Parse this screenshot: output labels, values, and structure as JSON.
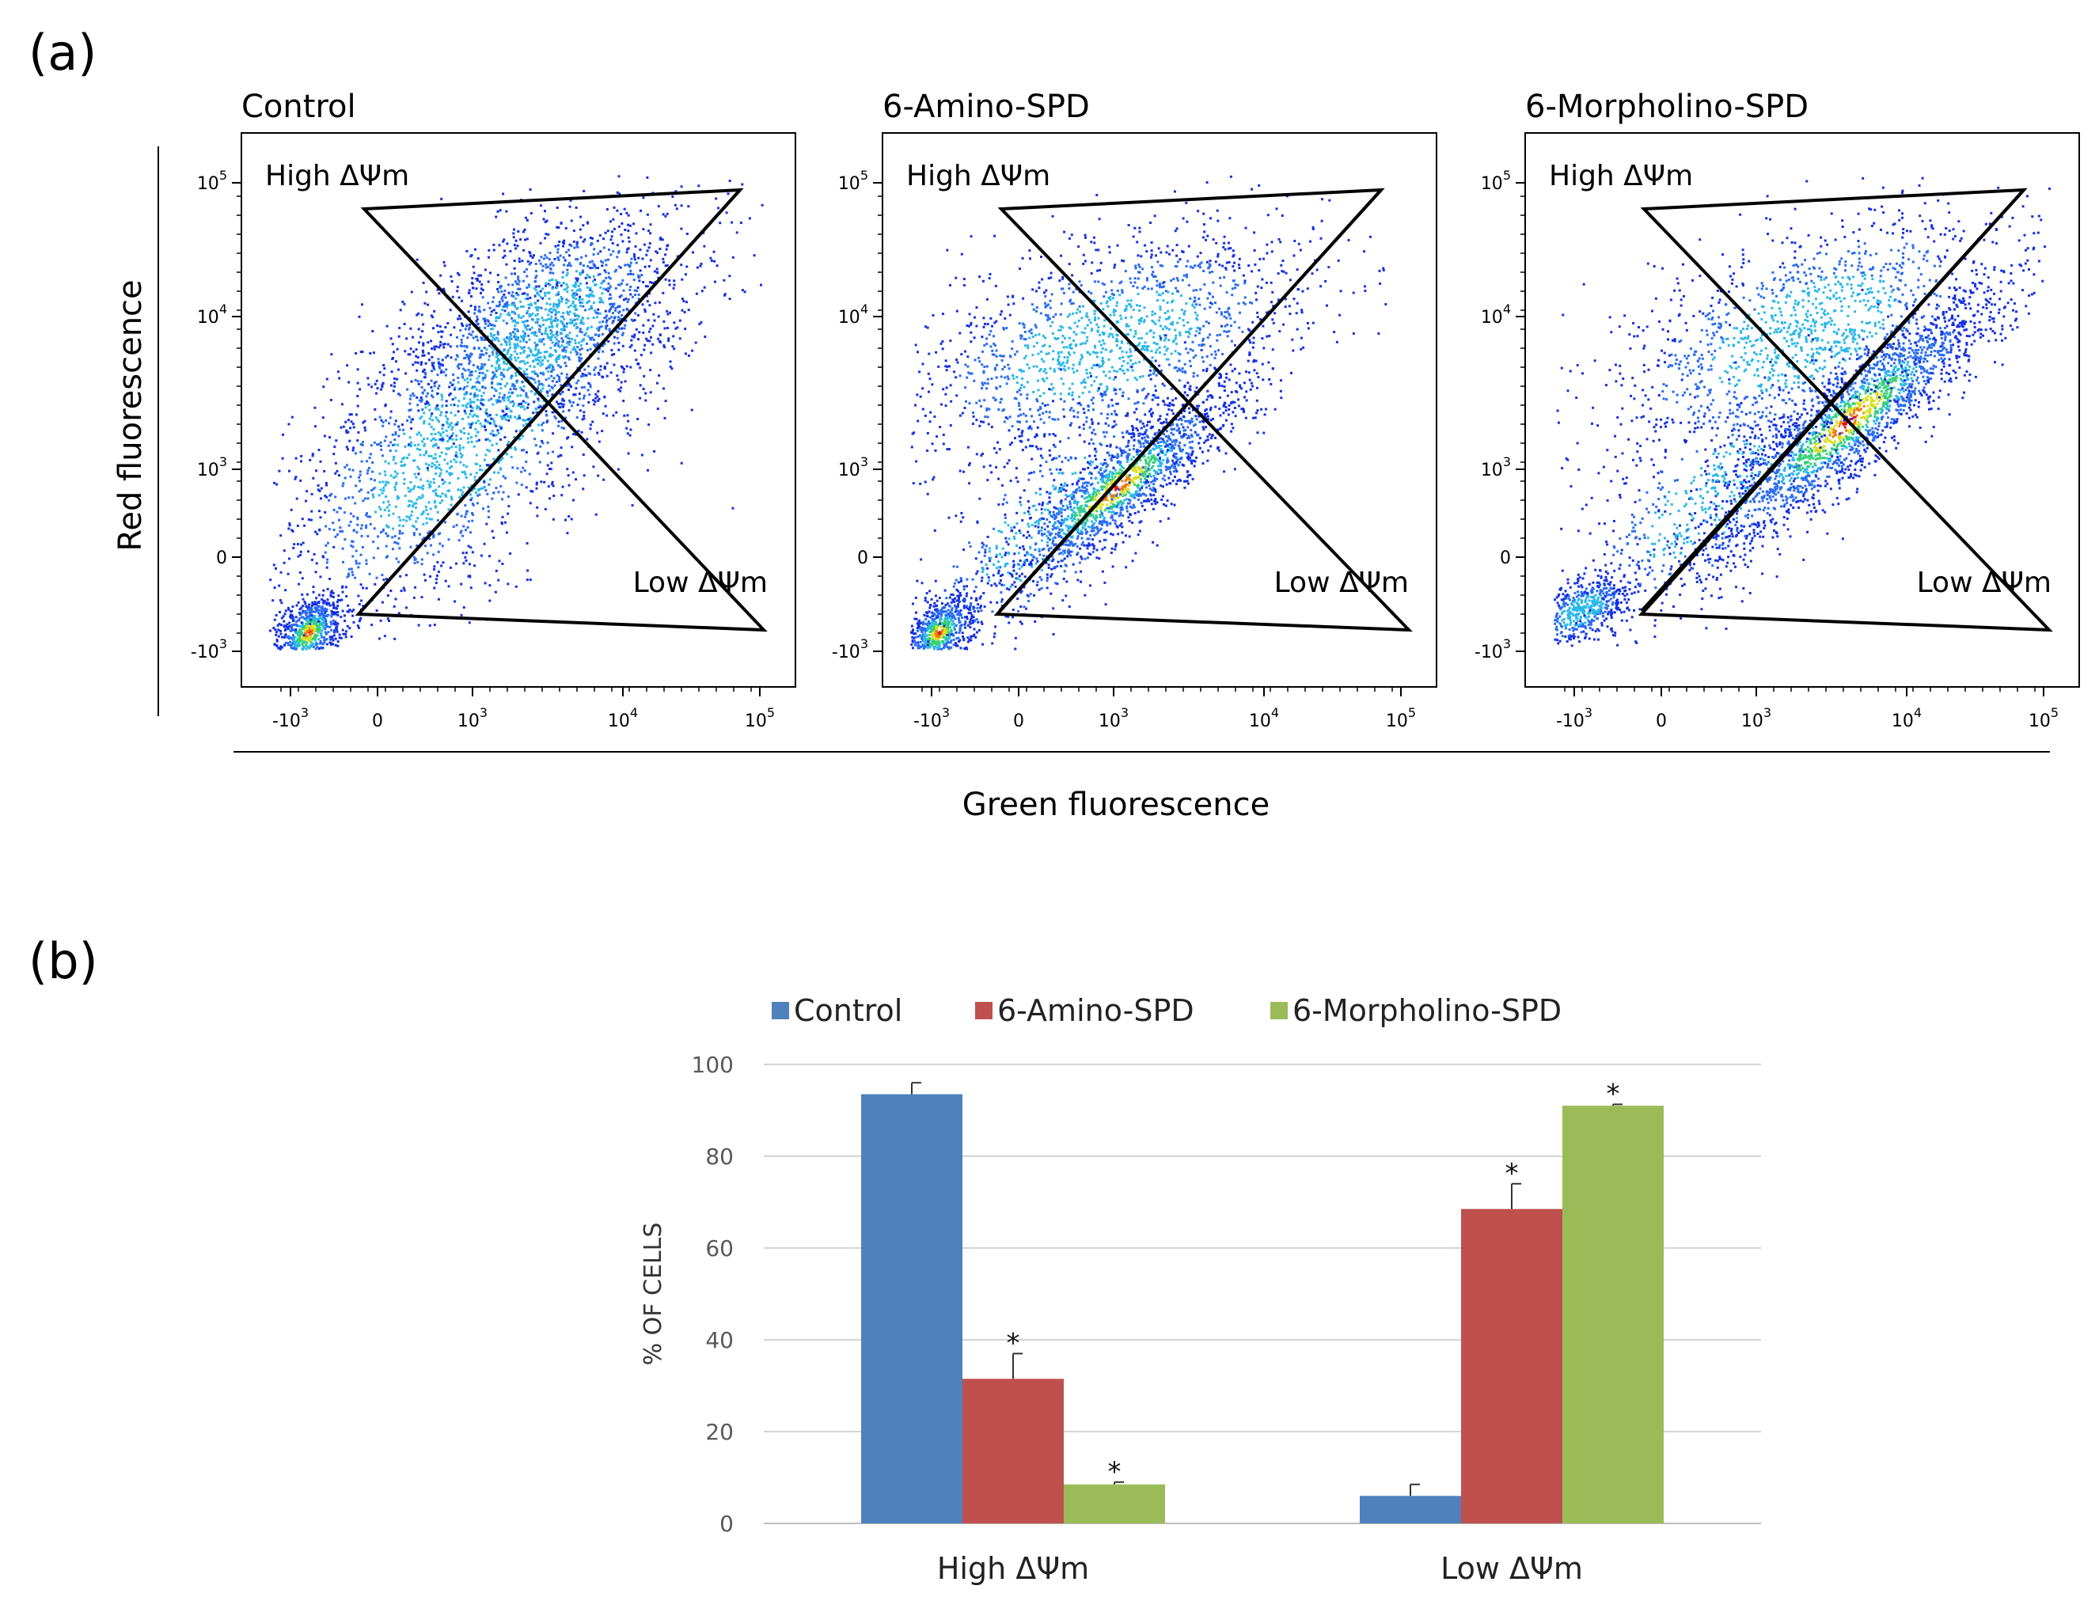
{
  "panel_a": {
    "label": "(a)",
    "ylabel": "Red fluorescence",
    "xlabel": "Green fluorescence",
    "plots": [
      {
        "title": "Control",
        "high_label": "High ΔΨm",
        "low_label": "Low ΔΨm"
      },
      {
        "title": "6-Amino-SPD",
        "high_label": "High ΔΨm",
        "low_label": "Low ΔΨm"
      },
      {
        "title": "6-Morpholino-SPD",
        "high_label": "High ΔΨm",
        "low_label": "Low ΔΨm"
      }
    ],
    "y_tick_labels": [
      {
        "base": "10",
        "exp": "5"
      },
      {
        "base": "10",
        "exp": "4"
      },
      {
        "base": "10",
        "exp": "3"
      },
      {
        "base": "0",
        "exp": ""
      },
      {
        "base": "-10",
        "exp": "3"
      }
    ],
    "x_tick_labels": [
      {
        "base": "-10",
        "exp": "3"
      },
      {
        "base": "0",
        "exp": ""
      },
      {
        "base": "10",
        "exp": "3"
      },
      {
        "base": "10",
        "exp": "4"
      },
      {
        "base": "10",
        "exp": "5"
      }
    ]
  },
  "panel_b": {
    "label": "(b)"
  },
  "chart_data": {
    "type": "bar",
    "title": "",
    "xlabel": "",
    "ylabel": "% OF CELLS",
    "ylim": [
      0,
      100
    ],
    "y_ticks": [
      0,
      20,
      40,
      60,
      80,
      100
    ],
    "categories": [
      "High ΔΨm",
      "Low ΔΨm"
    ],
    "series": [
      {
        "name": "Control",
        "color": "#4f81bd",
        "values": [
          93.5,
          6
        ],
        "errors": [
          2.5,
          2.5
        ],
        "significant": [
          false,
          false
        ]
      },
      {
        "name": "6-Amino-SPD",
        "color": "#c0504d",
        "values": [
          31.5,
          68.5
        ],
        "errors": [
          5.5,
          5.5
        ],
        "significant": [
          true,
          true
        ]
      },
      {
        "name": "6-Morpholino-SPD",
        "color": "#9bbb59",
        "values": [
          8.5,
          91
        ],
        "errors": [
          0.5,
          0.3
        ],
        "significant": [
          true,
          true
        ]
      }
    ],
    "significance_marker": "*",
    "legend_position": "top"
  }
}
